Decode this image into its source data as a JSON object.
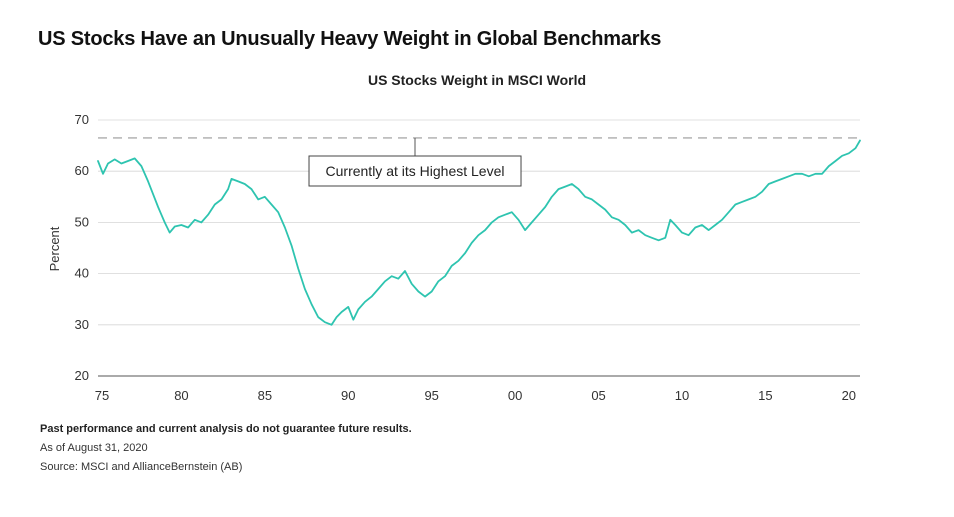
{
  "headline": "US Stocks Have an Unusually Heavy Weight in Global Benchmarks",
  "chart_data": {
    "type": "line",
    "title": "US Stocks Weight in MSCI World",
    "xlabel": "",
    "ylabel": "Percent",
    "xlim": [
      1975,
      2020.67
    ],
    "ylim": [
      20,
      70
    ],
    "yticks": [
      20,
      30,
      40,
      50,
      60,
      70
    ],
    "ytick_labels": [
      "20",
      "30",
      "40",
      "50",
      "60",
      "70"
    ],
    "xticks": [
      1975,
      1980,
      1985,
      1990,
      1995,
      2000,
      2005,
      2010,
      2015,
      2020
    ],
    "xtick_labels": [
      "75",
      "80",
      "85",
      "90",
      "95",
      "00",
      "05",
      "10",
      "15",
      "20"
    ],
    "grid": true,
    "series": [
      {
        "name": "US Stocks Weight",
        "color": "#2ec4b0",
        "x": [
          1975.0,
          1975.3,
          1975.6,
          1976.0,
          1976.4,
          1976.8,
          1977.2,
          1977.6,
          1978.0,
          1978.3,
          1978.6,
          1978.8,
          1979.0,
          1979.3,
          1979.6,
          1980.0,
          1980.4,
          1980.8,
          1981.2,
          1981.6,
          1982.0,
          1982.4,
          1982.8,
          1983.0,
          1983.4,
          1983.8,
          1984.2,
          1984.6,
          1985.0,
          1985.4,
          1985.8,
          1986.2,
          1986.6,
          1987.0,
          1987.4,
          1987.8,
          1988.2,
          1988.6,
          1989.0,
          1989.3,
          1989.6,
          1990.0,
          1990.3,
          1990.6,
          1991.0,
          1991.4,
          1991.8,
          1992.2,
          1992.6,
          1993.0,
          1993.4,
          1993.8,
          1994.2,
          1994.6,
          1995.0,
          1995.4,
          1995.8,
          1996.2,
          1996.6,
          1997.0,
          1997.4,
          1997.8,
          1998.2,
          1998.6,
          1999.0,
          1999.4,
          1999.8,
          2000.2,
          2000.6,
          2001.0,
          2001.4,
          2001.8,
          2002.2,
          2002.6,
          2003.0,
          2003.4,
          2003.8,
          2004.2,
          2004.6,
          2005.0,
          2005.4,
          2005.8,
          2006.2,
          2006.6,
          2007.0,
          2007.4,
          2007.8,
          2008.2,
          2008.6,
          2009.0,
          2009.3,
          2009.6,
          2010.0,
          2010.4,
          2010.8,
          2011.2,
          2011.6,
          2012.0,
          2012.4,
          2012.8,
          2013.2,
          2013.6,
          2014.0,
          2014.4,
          2014.8,
          2015.2,
          2015.6,
          2016.0,
          2016.4,
          2016.8,
          2017.2,
          2017.6,
          2018.0,
          2018.4,
          2018.8,
          2019.2,
          2019.6,
          2020.0,
          2020.4,
          2020.67
        ],
        "values": [
          62.0,
          59.5,
          61.5,
          62.3,
          61.5,
          62.0,
          62.5,
          61.0,
          58.0,
          55.5,
          53.0,
          51.5,
          50.0,
          48.0,
          49.2,
          49.5,
          49.0,
          50.5,
          50.0,
          51.5,
          53.5,
          54.5,
          56.5,
          58.5,
          58.0,
          57.5,
          56.5,
          54.5,
          55.0,
          53.5,
          52.0,
          49.0,
          45.5,
          41.0,
          37.0,
          34.0,
          31.5,
          30.5,
          30.0,
          31.5,
          32.5,
          33.5,
          31.0,
          33.0,
          34.5,
          35.5,
          37.0,
          38.5,
          39.5,
          39.0,
          40.5,
          38.0,
          36.5,
          35.5,
          36.5,
          38.5,
          39.5,
          41.5,
          42.5,
          44.0,
          46.0,
          47.5,
          48.5,
          50.0,
          51.0,
          51.5,
          52.0,
          50.5,
          48.5,
          50.0,
          51.5,
          53.0,
          55.0,
          56.5,
          57.0,
          57.5,
          56.5,
          55.0,
          54.5,
          53.5,
          52.5,
          51.0,
          50.5,
          49.5,
          48.0,
          48.5,
          47.5,
          47.0,
          46.5,
          47.0,
          50.5,
          49.5,
          48.0,
          47.5,
          49.0,
          49.5,
          48.5,
          49.5,
          50.5,
          52.0,
          53.5,
          54.0,
          54.5,
          55.0,
          56.0,
          57.5,
          58.0,
          58.5,
          59.0,
          59.5,
          59.5,
          59.0,
          59.5,
          59.5,
          61.0,
          62.0,
          63.0,
          63.5,
          64.5,
          66.0
        ]
      }
    ],
    "reference_line": {
      "value": 66.5,
      "style": "dashed",
      "color": "#999999"
    },
    "annotation": {
      "text": "Currently at its Highest Level",
      "anchor_x": 1994.0
    }
  },
  "footnotes": {
    "disclaimer": "Past performance and current analysis do not guarantee future results.",
    "asof": "As of August 31, 2020",
    "source": "Source: MSCI and AllianceBernstein (AB)"
  }
}
